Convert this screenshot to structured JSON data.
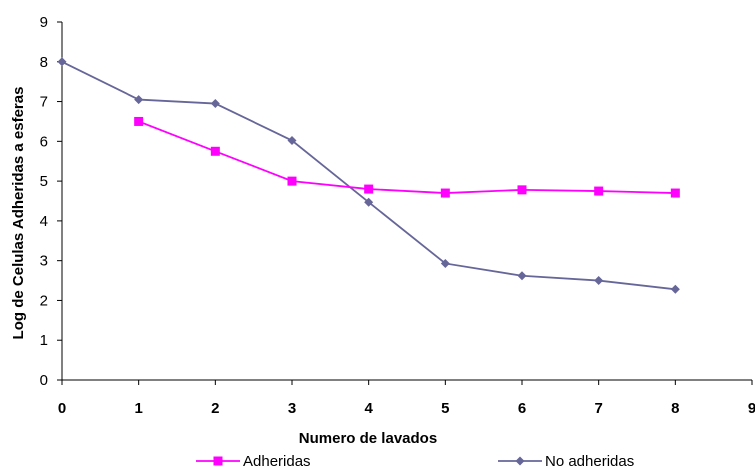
{
  "chart_data": {
    "type": "line",
    "title": "",
    "xlabel": "Numero de lavados",
    "ylabel": "Log de Celulas Adheridas a esferas",
    "xlim": [
      0,
      9
    ],
    "ylim": [
      0,
      9
    ],
    "x_ticks": [
      0,
      1,
      2,
      3,
      4,
      5,
      6,
      7,
      8,
      9
    ],
    "y_ticks": [
      0,
      1,
      2,
      3,
      4,
      5,
      6,
      7,
      8,
      9
    ],
    "grid": false,
    "legend_position": "bottom",
    "series": [
      {
        "name": "Adheridas",
        "color": "#ff00ff",
        "marker": "square",
        "x": [
          1,
          2,
          3,
          4,
          5,
          6,
          7,
          8
        ],
        "y": [
          6.5,
          5.75,
          5.0,
          4.8,
          4.7,
          4.78,
          4.75,
          4.7
        ]
      },
      {
        "name": "No adheridas",
        "color": "#666699",
        "marker": "diamond",
        "x": [
          0,
          1,
          2,
          3,
          4,
          5,
          6,
          7,
          8
        ],
        "y": [
          8.0,
          7.05,
          6.95,
          6.02,
          4.47,
          2.93,
          2.62,
          2.5,
          2.28
        ]
      }
    ]
  }
}
